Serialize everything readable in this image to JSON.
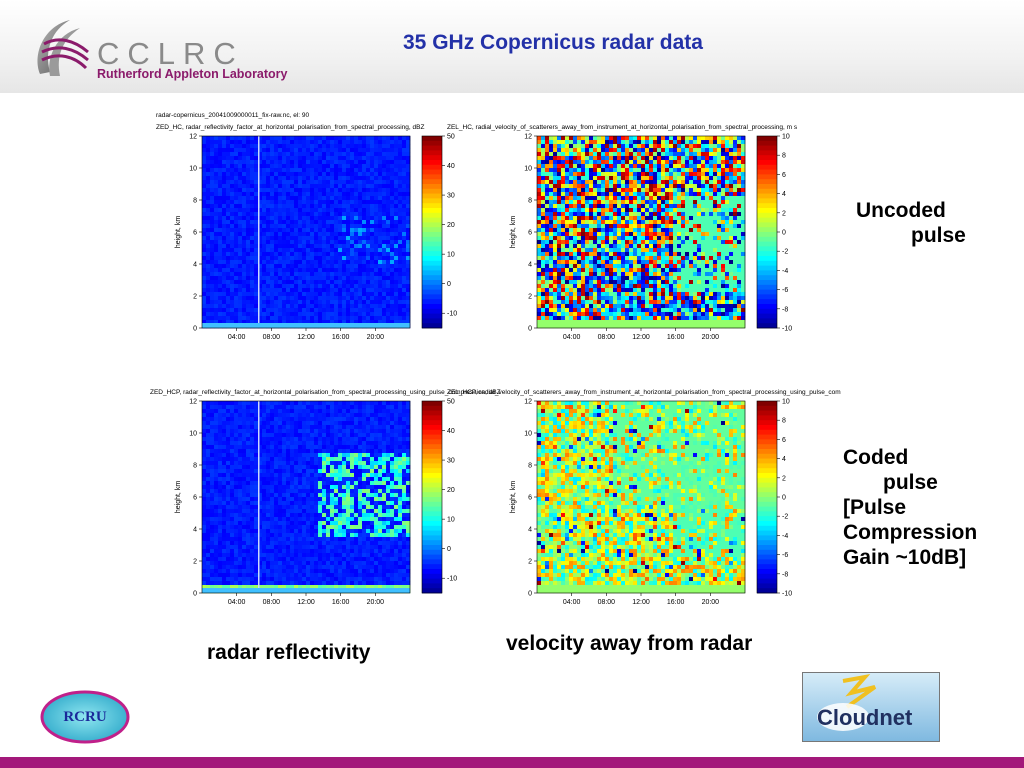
{
  "header": {
    "title": "35 GHz Copernicus radar data",
    "logo_main": "CCLRC",
    "logo_sub": "Rutherford Appleton Laboratory"
  },
  "labels": {
    "uncoded_line1": "Uncoded",
    "uncoded_line2": "pulse",
    "coded_line1": "Coded",
    "coded_line2": "pulse",
    "coded_line3": "[Pulse",
    "coded_line4": "Compression",
    "coded_line5": "Gain ~10dB]",
    "caption_left": "radar reflectivity",
    "caption_right": "velocity away from radar"
  },
  "logos": {
    "rcru": "RCRU",
    "cloudnet": "Cloudnet"
  },
  "colors": {
    "title_blue": "#2331a8",
    "accent_magenta": "#a3187a",
    "logo_grey": "#8a8a8a"
  },
  "chart_data": [
    {
      "type": "heatmap",
      "file_title": "radar-copernicus_20041009000011_fix-raw.nc, el: 90",
      "title": "ZED_HC, radar_reflectivity_factor_at_horizontal_polarisation_from_spectral_processing, dBZ",
      "ylabel": "height, km",
      "x_ticks": [
        "04:00",
        "08:00",
        "12:00",
        "16:00",
        "20:00"
      ],
      "y_ticks": [
        "0",
        "2",
        "4",
        "6",
        "8",
        "10",
        "12"
      ],
      "ylim": [
        0,
        12
      ],
      "colorbar_ticks": [
        "-10",
        "0",
        "10",
        "20",
        "30",
        "40",
        "50"
      ],
      "colorbar_range": [
        -15,
        50
      ]
    },
    {
      "type": "heatmap",
      "title": "ZEL_HC, radial_velocity_of_scatterers_away_from_instrument_at_horizontal_polarisation_from_spectral_processing, m s",
      "ylabel": "height, km",
      "x_ticks": [
        "04:00",
        "08:00",
        "12:00",
        "16:00",
        "20:00"
      ],
      "y_ticks": [
        "0",
        "2",
        "4",
        "6",
        "8",
        "10",
        "12"
      ],
      "ylim": [
        0,
        12
      ],
      "colorbar_ticks": [
        "-10",
        "-8",
        "-6",
        "-4",
        "-2",
        "0",
        "2",
        "4",
        "6",
        "8",
        "10"
      ],
      "colorbar_range": [
        -10,
        10
      ]
    },
    {
      "type": "heatmap",
      "title": "ZED_HCP, radar_reflectivity_factor_at_horizontal_polarisation_from_spectral_processing_using_pulse_compression, dBZ",
      "ylabel": "height, km",
      "x_ticks": [
        "04:00",
        "08:00",
        "12:00",
        "16:00",
        "20:00"
      ],
      "y_ticks": [
        "0",
        "2",
        "4",
        "6",
        "8",
        "10",
        "12"
      ],
      "ylim": [
        0,
        12
      ],
      "colorbar_ticks": [
        "-10",
        "0",
        "10",
        "20",
        "30",
        "40",
        "50"
      ],
      "colorbar_range": [
        -15,
        50
      ]
    },
    {
      "type": "heatmap",
      "title": "ZEL_HCP, radial_velocity_of_scatterers_away_from_instrument_at_horizontal_polarisation_from_spectral_processing_using_pulse_com",
      "ylabel": "height, km",
      "x_ticks": [
        "04:00",
        "08:00",
        "12:00",
        "16:00",
        "20:00"
      ],
      "y_ticks": [
        "0",
        "2",
        "4",
        "6",
        "8",
        "10",
        "12"
      ],
      "ylim": [
        0,
        12
      ],
      "colorbar_ticks": [
        "-10",
        "-8",
        "-6",
        "-4",
        "-2",
        "0",
        "2",
        "4",
        "6",
        "8",
        "10"
      ],
      "colorbar_range": [
        -10,
        10
      ]
    }
  ]
}
